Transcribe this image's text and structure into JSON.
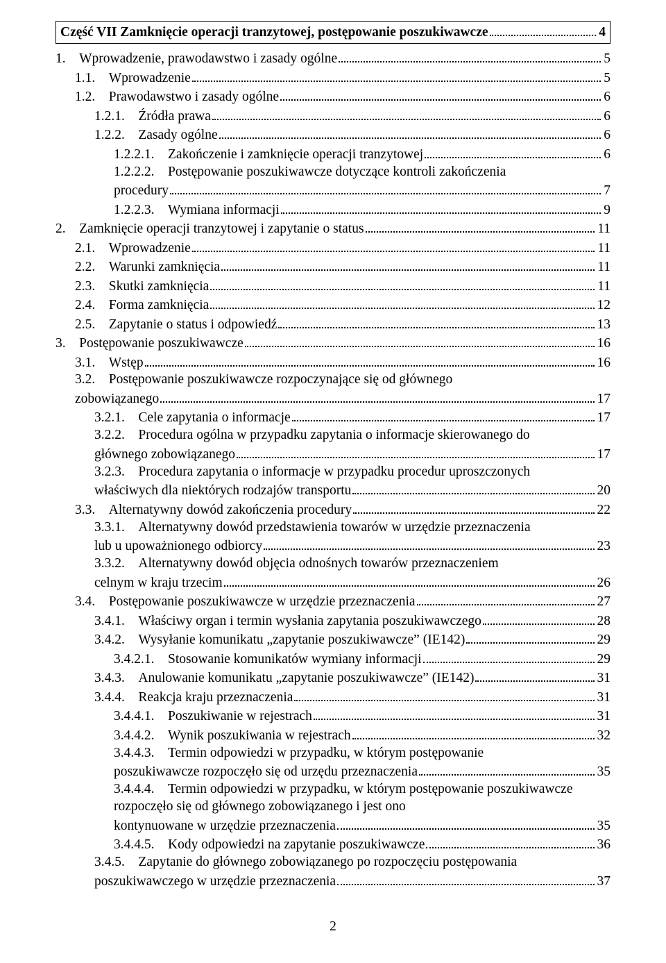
{
  "title": {
    "label": "Część VII Zamknięcie operacji tranzytowej, postępowanie poszukiwawcze",
    "page": "4"
  },
  "entries": [
    {
      "indent": 0,
      "num": "1.",
      "label": "Wprowadzenie, prawodawstwo i zasady ogólne",
      "page": "5"
    },
    {
      "indent": 1,
      "num": "1.1.",
      "label": "Wprowadzenie",
      "page": "5"
    },
    {
      "indent": 1,
      "num": "1.2.",
      "label": "Prawodawstwo i zasady ogólne",
      "page": "6"
    },
    {
      "indent": 2,
      "num": "1.2.1.",
      "label": "Źródła prawa",
      "page": "6"
    },
    {
      "indent": 2,
      "num": "1.2.2.",
      "label": "Zasady ogólne",
      "page": "6"
    },
    {
      "indent": 3,
      "num": "1.2.2.1.",
      "label": "Zakończenie i zamknięcie operacji tranzytowej",
      "page": "6"
    },
    {
      "indent": 3,
      "num": "1.2.2.2.",
      "label": "Postępowanie poszukiwawcze dotyczące kontroli zakończenia procedury",
      "page": "7",
      "wrap": true
    },
    {
      "indent": 3,
      "num": "1.2.2.3.",
      "label": "Wymiana informacji",
      "page": "9"
    },
    {
      "indent": 0,
      "num": "2.",
      "label": "Zamknięcie operacji tranzytowej i zapytanie o status",
      "page": "11"
    },
    {
      "indent": 1,
      "num": "2.1.",
      "label": "Wprowadzenie",
      "page": "11"
    },
    {
      "indent": 1,
      "num": "2.2.",
      "label": "Warunki zamknięcia",
      "page": "11"
    },
    {
      "indent": 1,
      "num": "2.3.",
      "label": "Skutki zamknięcia",
      "page": "11"
    },
    {
      "indent": 1,
      "num": "2.4.",
      "label": "Forma zamknięcia",
      "page": "12"
    },
    {
      "indent": 1,
      "num": "2.5.",
      "label": "Zapytanie o status i odpowiedź",
      "page": "13"
    },
    {
      "indent": 0,
      "num": "3.",
      "label": "Postępowanie poszukiwawcze",
      "page": "16"
    },
    {
      "indent": 1,
      "num": "3.1.",
      "label": "Wstęp",
      "page": "16"
    },
    {
      "indent": 1,
      "num": "3.2.",
      "label": "Postępowanie poszukiwawcze rozpoczynające się od głównego zobowiązanego",
      "page": "17",
      "wrap": true
    },
    {
      "indent": 2,
      "num": "3.2.1.",
      "label": "Cele zapytania o informacje",
      "page": "17"
    },
    {
      "indent": 2,
      "num": "3.2.2.",
      "label": "Procedura ogólna w przypadku zapytania o informacje skierowanego do głównego zobowiązanego",
      "page": "17",
      "wrap": true
    },
    {
      "indent": 2,
      "num": "3.2.3.",
      "label": "Procedura zapytania o informacje w przypadku procedur uproszczonych właściwych dla niektórych rodzajów transportu",
      "page": "20",
      "wrap": true
    },
    {
      "indent": 1,
      "num": "3.3.",
      "label": "Alternatywny dowód zakończenia procedury",
      "page": "22"
    },
    {
      "indent": 2,
      "num": "3.3.1.",
      "label": "Alternatywny dowód przedstawienia towarów w urzędzie przeznaczenia lub u upoważnionego odbiorcy",
      "page": "23",
      "wrap": true
    },
    {
      "indent": 2,
      "num": "3.3.2.",
      "label": "Alternatywny dowód objęcia odnośnych towarów przeznaczeniem celnym w kraju trzecim",
      "page": "26",
      "wrap": true
    },
    {
      "indent": 1,
      "num": "3.4.",
      "label": "Postępowanie poszukiwawcze w urzędzie przeznaczenia",
      "page": "27"
    },
    {
      "indent": 2,
      "num": "3.4.1.",
      "label": "Właściwy organ i termin wysłania zapytania poszukiwawczego",
      "page": "28"
    },
    {
      "indent": 2,
      "num": "3.4.2.",
      "label": "Wysyłanie komunikatu „zapytanie poszukiwawcze” (IE142)",
      "page": "29"
    },
    {
      "indent": 3,
      "num": "3.4.2.1.",
      "label": "Stosowanie komunikatów wymiany informacji",
      "page": "29"
    },
    {
      "indent": 2,
      "num": "3.4.3.",
      "label": "Anulowanie komunikatu „zapytanie poszukiwawcze” (IE142)",
      "page": "31"
    },
    {
      "indent": 2,
      "num": "3.4.4.",
      "label": "Reakcja kraju przeznaczenia",
      "page": "31"
    },
    {
      "indent": 3,
      "num": "3.4.4.1.",
      "label": "Poszukiwanie w rejestrach",
      "page": "31"
    },
    {
      "indent": 3,
      "num": "3.4.4.2.",
      "label": "Wynik poszukiwania w rejestrach",
      "page": "32"
    },
    {
      "indent": 3,
      "num": "3.4.4.3.",
      "label": "Termin odpowiedzi w przypadku, w którym postępowanie poszukiwawcze rozpoczęło się od urzędu przeznaczenia",
      "page": "35",
      "wrap": true
    },
    {
      "indent": 3,
      "num": "3.4.4.4.",
      "label": "Termin odpowiedzi w przypadku, w którym postępowanie poszukiwawcze rozpoczęło się od głównego zobowiązanego i jest ono kontynuowane w urzędzie przeznaczenia",
      "page": "35",
      "wrap": true
    },
    {
      "indent": 3,
      "num": "3.4.4.5.",
      "label": "Kody odpowiedzi na zapytanie poszukiwawcze",
      "page": "36"
    },
    {
      "indent": 2,
      "num": "3.4.5.",
      "label": "Zapytanie do głównego zobowiązanego po rozpoczęciu postępowania poszukiwawczego w urzędzie przeznaczenia",
      "page": "37",
      "wrap": true
    }
  ],
  "pageNumber": "2",
  "style": {
    "fontFamily": "Times New Roman",
    "fontSizePx": 19.5,
    "textColor": "#000000",
    "background": "#ffffff",
    "dotColor": "#000000",
    "borderColor": "#000000",
    "indentPx": 28
  }
}
